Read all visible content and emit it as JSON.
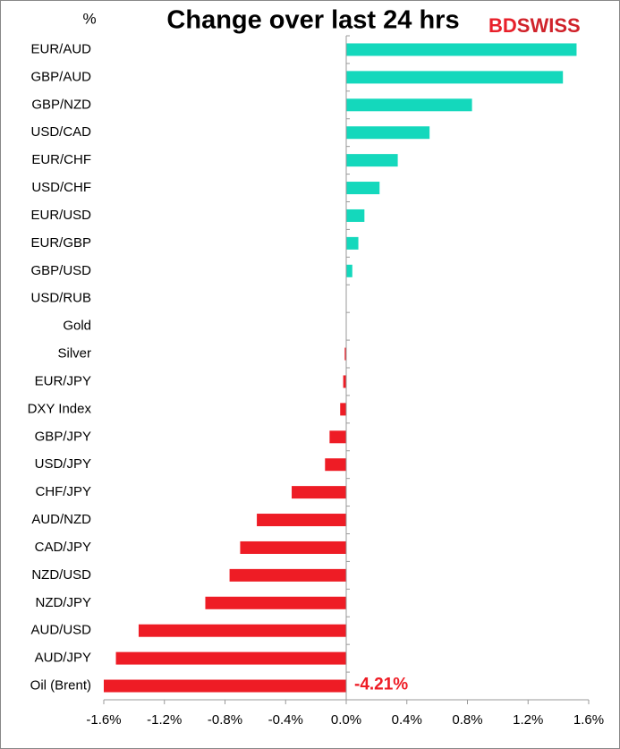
{
  "chart_data": {
    "type": "hbar",
    "title": "Change over last 24 hrs",
    "unit_label": "%",
    "logo": {
      "left": "BD",
      "right": "SWISS"
    },
    "categories": [
      "EUR/AUD",
      "GBP/AUD",
      "GBP/NZD",
      "USD/CAD",
      "EUR/CHF",
      "USD/CHF",
      "EUR/USD",
      "EUR/GBP",
      "GBP/USD",
      "USD/RUB",
      "Gold",
      "Silver",
      "EUR/JPY",
      "DXY Index",
      "GBP/JPY",
      "USD/JPY",
      "CHF/JPY",
      "AUD/NZD",
      "CAD/JPY",
      "NZD/USD",
      "NZD/JPY",
      "AUD/USD",
      "AUD/JPY",
      "Oil (Brent)"
    ],
    "values": [
      1.52,
      1.43,
      0.83,
      0.55,
      0.34,
      0.22,
      0.12,
      0.08,
      0.04,
      0.0,
      0.0,
      -0.01,
      -0.02,
      -0.04,
      -0.11,
      -0.14,
      -0.36,
      -0.59,
      -0.7,
      -0.77,
      -0.93,
      -1.37,
      -1.52,
      -4.21
    ],
    "value_labels": [
      null,
      null,
      null,
      null,
      null,
      null,
      null,
      null,
      null,
      null,
      null,
      null,
      null,
      null,
      null,
      null,
      null,
      null,
      null,
      null,
      null,
      null,
      null,
      "-4.21%"
    ],
    "positive_color": "#14d8bc",
    "negative_color": "#ee1c25",
    "xlim": [
      -1.6,
      1.6
    ],
    "xticks": [
      {
        "value": -1.6,
        "label": "-1.6%"
      },
      {
        "value": -1.2,
        "label": "-1.2%"
      },
      {
        "value": -0.8,
        "label": "-0.8%"
      },
      {
        "value": -0.4,
        "label": "-0.4%"
      },
      {
        "value": 0,
        "label": "0.0%"
      },
      {
        "value": 0.4,
        "label": "0.4%"
      },
      {
        "value": 0.8,
        "label": "0.8%"
      },
      {
        "value": 1.2,
        "label": "1.2%"
      },
      {
        "value": 1.6,
        "label": "1.6%"
      }
    ]
  }
}
